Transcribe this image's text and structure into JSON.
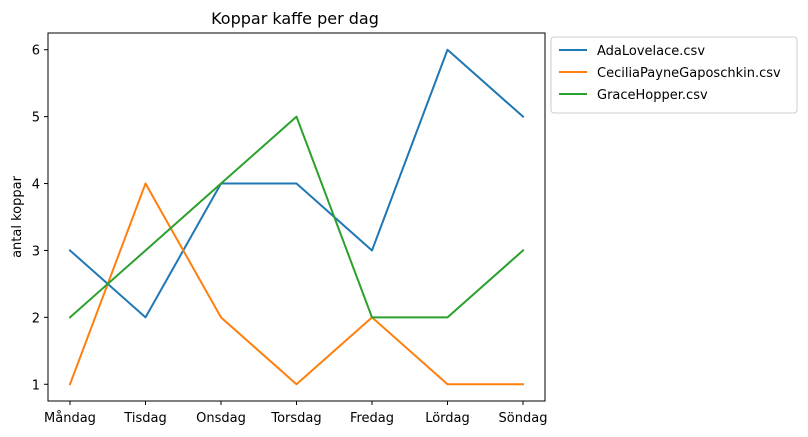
{
  "chart_data": {
    "type": "line",
    "title": "Koppar kaffe per dag",
    "xlabel": "",
    "ylabel": "antal koppar",
    "categories": [
      "Måndag",
      "Tisdag",
      "Onsdag",
      "Torsdag",
      "Fredag",
      "Lördag",
      "Söndag"
    ],
    "ylim": [
      0.75,
      6.25
    ],
    "yticks": [
      1,
      2,
      3,
      4,
      5,
      6
    ],
    "grid": false,
    "legend_position": "outside-right-top",
    "series": [
      {
        "name": "AdaLovelace.csv",
        "color": "#1f77b4",
        "values": [
          3,
          2,
          4,
          4,
          3,
          6,
          5
        ]
      },
      {
        "name": "CeciliaPayneGaposchkin.csv",
        "color": "#ff7f0e",
        "values": [
          1,
          4,
          2,
          1,
          2,
          1,
          1
        ]
      },
      {
        "name": "GraceHopper.csv",
        "color": "#2ca02c",
        "values": [
          2,
          3,
          4,
          5,
          2,
          2,
          3
        ]
      }
    ]
  }
}
